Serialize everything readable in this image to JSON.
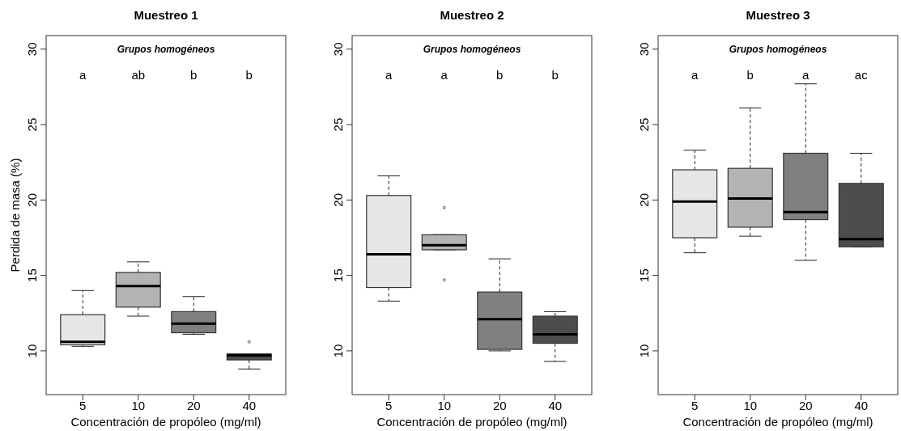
{
  "chart_data": [
    {
      "type": "box",
      "title": "Muestreo 1",
      "xlabel": "Concentración de propóleo (mg/ml)",
      "ylabel": "Perdida de masa (%)",
      "categories": [
        "5",
        "10",
        "20",
        "40"
      ],
      "colors": [
        "#e6e6e6",
        "#b3b3b3",
        "#808080",
        "#4d4d4d"
      ],
      "ylim": [
        7.1,
        30.9
      ],
      "yticks": [
        10,
        15,
        20,
        25,
        30
      ],
      "boxes": [
        {
          "low": 10.3,
          "q1": 10.4,
          "median": 10.6,
          "q3": 12.4,
          "high": 14.0
        },
        {
          "low": 12.3,
          "q1": 12.9,
          "median": 14.3,
          "q3": 15.2,
          "high": 15.9
        },
        {
          "low": 11.1,
          "q1": 11.2,
          "median": 11.8,
          "q3": 12.6,
          "high": 13.6
        },
        {
          "low": 8.8,
          "q1": 9.4,
          "median": 9.7,
          "q3": 9.8,
          "high": 9.8,
          "outliers": [
            10.6
          ]
        }
      ],
      "annotations": [
        "Grupos homogéneos",
        "a",
        "ab",
        "b",
        "b"
      ]
    },
    {
      "type": "box",
      "title": "Muestreo 2",
      "xlabel": "Concentración de propóleo (mg/ml)",
      "categories": [
        "5",
        "10",
        "20",
        "40"
      ],
      "colors": [
        "#e6e6e6",
        "#b3b3b3",
        "#808080",
        "#4d4d4d"
      ],
      "ylim": [
        7.1,
        30.9
      ],
      "yticks": [
        10,
        15,
        20,
        25,
        30
      ],
      "boxes": [
        {
          "low": 13.3,
          "q1": 14.2,
          "median": 16.4,
          "q3": 20.3,
          "high": 21.6
        },
        {
          "low": 16.7,
          "q1": 16.7,
          "median": 17.0,
          "q3": 17.7,
          "high": 17.7,
          "outliers": [
            19.5,
            14.7
          ]
        },
        {
          "low": 10.0,
          "q1": 10.1,
          "median": 12.1,
          "q3": 13.9,
          "high": 16.1
        },
        {
          "low": 9.3,
          "q1": 10.5,
          "median": 11.1,
          "q3": 12.3,
          "high": 12.6
        }
      ],
      "annotations": [
        "Grupos homogéneos",
        "a",
        "a",
        "b",
        "b"
      ]
    },
    {
      "type": "box",
      "title": "Muestreo 3",
      "xlabel": "Concentración de propóleo (mg/ml)",
      "categories": [
        "5",
        "10",
        "20",
        "40"
      ],
      "colors": [
        "#e6e6e6",
        "#b3b3b3",
        "#808080",
        "#4d4d4d"
      ],
      "ylim": [
        7.1,
        30.9
      ],
      "yticks": [
        10,
        15,
        20,
        25,
        30
      ],
      "boxes": [
        {
          "low": 16.5,
          "q1": 17.5,
          "median": 19.9,
          "q3": 22.0,
          "high": 23.3
        },
        {
          "low": 17.6,
          "q1": 18.2,
          "median": 20.1,
          "q3": 22.1,
          "high": 26.1
        },
        {
          "low": 16.0,
          "q1": 18.7,
          "median": 19.2,
          "q3": 23.1,
          "high": 27.7
        },
        {
          "low": 16.9,
          "q1": 16.9,
          "median": 17.4,
          "q3": 21.1,
          "high": 23.1
        }
      ],
      "annotations": [
        "Grupos homogéneos",
        "a",
        "b",
        "a",
        "ac"
      ]
    }
  ]
}
